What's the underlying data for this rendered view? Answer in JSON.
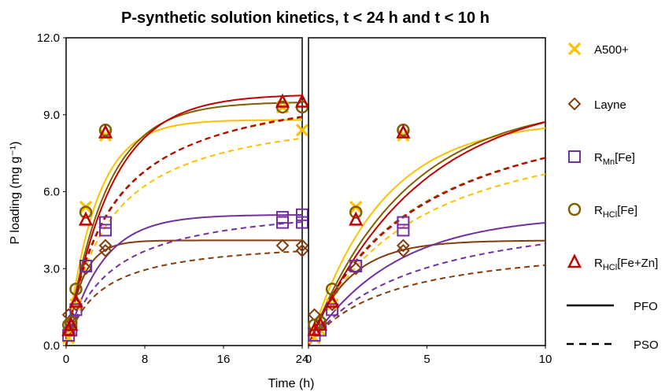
{
  "chart_data": {
    "type": "scatter",
    "title": "P-synthetic solution kinetics, t < 24 h and t < 10 h",
    "xlabel": "Time (h)",
    "ylabel": "P loading (mg g⁻¹)",
    "ylim": [
      0,
      12
    ],
    "yticks": [
      "0.0",
      "3.0",
      "6.0",
      "9.0",
      "12.0"
    ],
    "panels": [
      {
        "name": "left",
        "xlim": [
          0,
          24
        ],
        "xticks": [
          "0",
          "8",
          "16",
          "24"
        ]
      },
      {
        "name": "right",
        "xlim": [
          0,
          10
        ],
        "xticks": [
          "0",
          "5",
          "10"
        ]
      }
    ],
    "series": [
      {
        "key": "a500",
        "name": "A500+",
        "color": "#FFC000",
        "marker": "x",
        "points_full": [
          [
            0.25,
            0.3
          ],
          [
            0.5,
            0.6
          ],
          [
            1,
            1.6
          ],
          [
            2,
            5.4
          ],
          [
            4,
            8.2
          ],
          [
            22,
            9.3
          ],
          [
            24,
            8.4
          ]
        ],
        "points_zoom": [
          [
            0.25,
            0.3
          ],
          [
            0.5,
            0.6
          ],
          [
            1,
            1.6
          ],
          [
            2,
            5.4
          ],
          [
            4,
            8.2
          ]
        ],
        "pfo": {
          "qe": 8.8,
          "k1": 0.33
        },
        "pso": {
          "qe": 9.5,
          "k2": 0.025
        }
      },
      {
        "key": "layne",
        "name": "Layne",
        "color": "#843C0C",
        "marker": "diamond",
        "points_full": [
          [
            0.25,
            1.2
          ],
          [
            0.5,
            1.0
          ],
          [
            1,
            1.6
          ],
          [
            2,
            3.0
          ],
          [
            4,
            3.9
          ],
          [
            4,
            3.7
          ],
          [
            22,
            3.9
          ],
          [
            24,
            3.9
          ],
          [
            24,
            3.7
          ]
        ],
        "points_zoom": [
          [
            0.25,
            1.2
          ],
          [
            0.5,
            1.0
          ],
          [
            1,
            1.6
          ],
          [
            2,
            3.0
          ],
          [
            4,
            3.9
          ],
          [
            4,
            3.7
          ]
        ],
        "pfo": {
          "qe": 4.1,
          "k1": 0.6
        },
        "pso": {
          "qe": 4.2,
          "k2": 0.07
        }
      },
      {
        "key": "rmn",
        "name": "R",
        "sub": "Mn",
        "suffix": "[Fe]",
        "color": "#7030A0",
        "marker": "square",
        "points_full": [
          [
            0.25,
            0.4
          ],
          [
            0.5,
            0.6
          ],
          [
            1,
            1.4
          ],
          [
            2,
            3.1
          ],
          [
            4,
            4.8
          ],
          [
            4,
            4.5
          ],
          [
            22,
            5.0
          ],
          [
            22,
            4.8
          ],
          [
            24,
            5.1
          ],
          [
            24,
            4.8
          ]
        ],
        "points_zoom": [
          [
            0.25,
            0.4
          ],
          [
            0.5,
            0.6
          ],
          [
            1,
            1.4
          ],
          [
            2,
            3.1
          ],
          [
            4,
            4.8
          ],
          [
            4,
            4.5
          ]
        ],
        "pfo": {
          "qe": 5.1,
          "k1": 0.28
        },
        "pso": {
          "qe": 5.7,
          "k2": 0.04
        }
      },
      {
        "key": "rhcl",
        "name": "R",
        "sub": "HCl",
        "suffix": "[Fe]",
        "color": "#7F6000",
        "marker": "circle",
        "points_full": [
          [
            0.25,
            0.8
          ],
          [
            0.5,
            0.9
          ],
          [
            1,
            2.2
          ],
          [
            2,
            5.2
          ],
          [
            4,
            8.4
          ],
          [
            22,
            9.3
          ],
          [
            24,
            9.3
          ]
        ],
        "points_zoom": [
          [
            0.25,
            0.8
          ],
          [
            0.5,
            0.9
          ],
          [
            1,
            2.2
          ],
          [
            2,
            5.2
          ],
          [
            4,
            8.4
          ]
        ],
        "pfo": {
          "qe": 9.5,
          "k1": 0.25
        },
        "pso": {
          "qe": 10.5,
          "k2": 0.022
        }
      },
      {
        "key": "rhclzn",
        "name": "R",
        "sub": "HCl",
        "suffix": "[Fe+Zn]",
        "color": "#C00000",
        "marker": "triangle",
        "points_full": [
          [
            0.25,
            0.6
          ],
          [
            0.5,
            0.8
          ],
          [
            1,
            1.7
          ],
          [
            2,
            4.9
          ],
          [
            4,
            8.3
          ],
          [
            22,
            9.5
          ],
          [
            24,
            9.5
          ]
        ],
        "points_zoom": [
          [
            0.25,
            0.6
          ],
          [
            0.5,
            0.8
          ],
          [
            1,
            1.7
          ],
          [
            2,
            4.9
          ],
          [
            4,
            8.3
          ]
        ],
        "pfo": {
          "qe": 9.8,
          "k1": 0.22
        },
        "pso": {
          "qe": 10.6,
          "k2": 0.021
        }
      }
    ],
    "line_legend": [
      {
        "label": "PFO",
        "style": "solid"
      },
      {
        "label": "PSO",
        "style": "dashed"
      }
    ]
  }
}
